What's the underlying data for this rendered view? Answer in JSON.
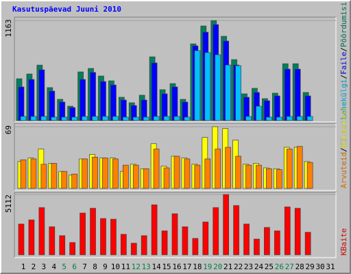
{
  "chart_data": {
    "type": "bar",
    "title": "Kasutuspäevad Juuni 2010",
    "categories": [
      1,
      2,
      3,
      4,
      5,
      6,
      7,
      8,
      9,
      10,
      11,
      12,
      13,
      14,
      15,
      16,
      17,
      18,
      19,
      20,
      21,
      22,
      23,
      24,
      25,
      26,
      27,
      28,
      29,
      30,
      31
    ],
    "category_colors": [
      "#000000",
      "#000000",
      "#000000",
      "#000000",
      "#008040",
      "#008040",
      "#000000",
      "#000000",
      "#000000",
      "#000000",
      "#000000",
      "#008040",
      "#008040",
      "#000000",
      "#000000",
      "#000000",
      "#000000",
      "#000000",
      "#008040",
      "#008040",
      "#000000",
      "#000000",
      "#000000",
      "#000000",
      "#000000",
      "#008040",
      "#008040",
      "#000000",
      "#000000",
      "#000000",
      "#000000"
    ],
    "legend_separator": "/",
    "panels": [
      {
        "ylim": [
          0,
          1163
        ],
        "yticks": [
          1163
        ],
        "series": [
          {
            "name": "Pöördumisi",
            "color": "#00805c",
            "values": [
              486,
              542,
              645,
              383,
              247,
              167,
              566,
              606,
              518,
              462,
              271,
              207,
              295,
              741,
              359,
              430,
              247,
              892,
              1100,
              1163,
              980,
              709,
              311,
              375,
              255,
              319,
              661,
              661,
              327,
              null,
              null
            ]
          },
          {
            "name": "Faile",
            "color": "#0000ff",
            "values": [
              391,
              478,
              590,
              343,
              215,
              151,
              478,
              560,
              454,
              414,
              239,
              175,
              239,
              670,
              311,
              391,
              215,
              869,
              1028,
              1116,
              925,
              646,
              271,
              327,
              231,
              287,
              598,
              598,
              287,
              null,
              null
            ]
          },
          {
            "name": "Lehekülgi",
            "color": "#00c0ff",
            "values": [
              48,
              48,
              48,
              40,
              40,
              40,
              48,
              48,
              48,
              48,
              40,
              40,
              40,
              48,
              48,
              48,
              40,
              813,
              790,
              765,
              646,
              638,
              48,
              167,
              40,
              40,
              48,
              48,
              48,
              null,
              null
            ]
          }
        ]
      },
      {
        "ylim": [
          0,
          69
        ],
        "yticks": [
          69
        ],
        "series": [
          {
            "name": "Külastusi",
            "color": "#ffff00",
            "values": [
              30,
              34,
              44,
              28,
              19,
              15,
              33,
              38,
              34,
              34,
              19,
              27,
              22,
              50,
              25,
              36,
              34,
              27,
              57,
              69,
              67,
              54,
              27,
              28,
              23,
              22,
              46,
              46,
              30,
              null,
              null
            ]
          },
          {
            "name": "Arvuteid",
            "color": "#ff8000",
            "values": [
              32,
              33,
              27,
              28,
              19,
              16,
              33,
              35,
              34,
              33,
              26,
              26,
              22,
              44,
              23,
              36,
              33,
              26,
              33,
              44,
              46,
              36,
              26,
              26,
              22,
              21,
              44,
              47,
              29,
              null,
              null
            ]
          }
        ]
      },
      {
        "ylim": [
          0,
          5112
        ],
        "yticks": [
          5112
        ],
        "series": [
          {
            "name": "KBaite",
            "color": "#ff0000",
            "values": [
              2614,
              2963,
              4008,
              2381,
              1627,
              1045,
              3544,
              3950,
              3079,
              3021,
              1743,
              988,
              1627,
              4241,
              2033,
              3485,
              2381,
              1394,
              2788,
              4008,
              5112,
              4182,
              2614,
              1336,
              2323,
              2033,
              4066,
              3950,
              1917,
              null,
              null
            ]
          }
        ]
      }
    ]
  }
}
